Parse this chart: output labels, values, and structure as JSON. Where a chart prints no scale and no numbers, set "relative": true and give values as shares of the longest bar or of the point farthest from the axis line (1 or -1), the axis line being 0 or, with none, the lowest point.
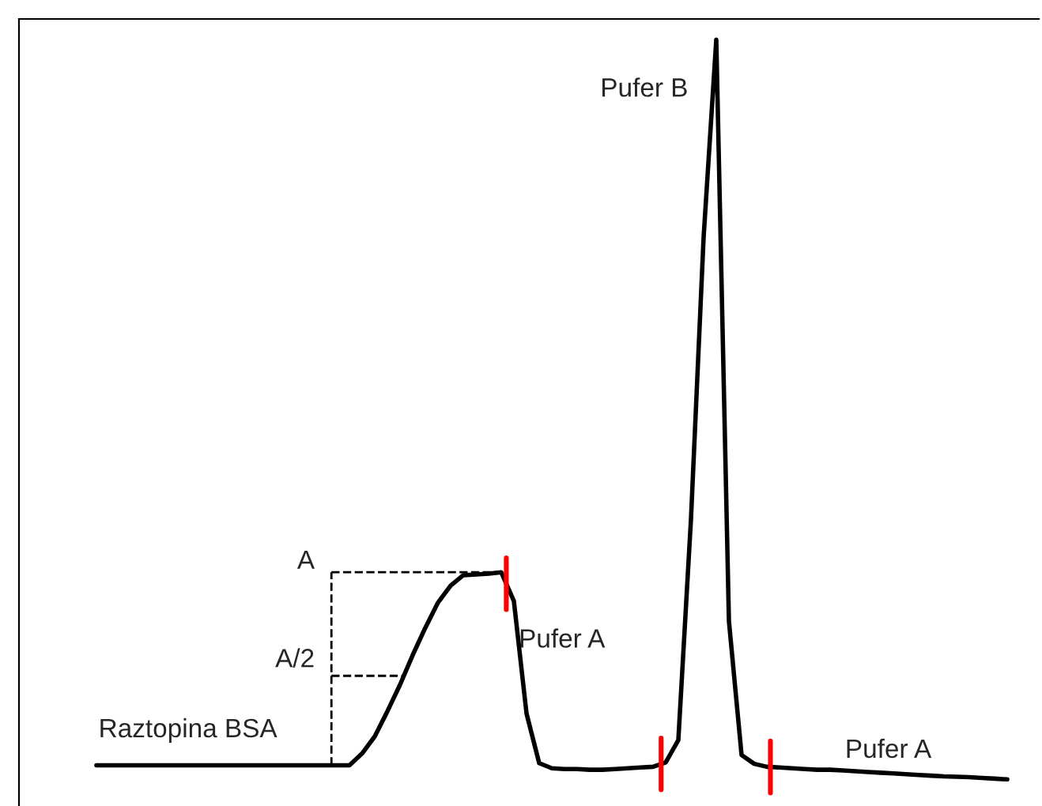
{
  "chart_data": {
    "type": "line",
    "relative": true,
    "categories": [
      null,
      null,
      null,
      null,
      null,
      null,
      null,
      null,
      null,
      null,
      null,
      null,
      null,
      null,
      null,
      null,
      null,
      null,
      null,
      null,
      null,
      null,
      null,
      null,
      null,
      null,
      null,
      null,
      null,
      null,
      null,
      null,
      null,
      null,
      null,
      null,
      null,
      null,
      null,
      null,
      null,
      null,
      null,
      null,
      null,
      null,
      null,
      null,
      null,
      null,
      null,
      null,
      null,
      null,
      null,
      null,
      null,
      null,
      null,
      null,
      null,
      null,
      null,
      null,
      null,
      null,
      null,
      null,
      null,
      null,
      null,
      null,
      null
    ],
    "series": [
      {
        "color": "#000000",
        "values": [
          0.019,
          0.019,
          0.019,
          0.019,
          0.019,
          0.019,
          0.019,
          0.019,
          0.019,
          0.019,
          0.019,
          0.019,
          0.019,
          0.019,
          0.019,
          0.019,
          0.019,
          0.019,
          0.019,
          0.019,
          0.019,
          0.035,
          0.058,
          0.092,
          0.128,
          0.168,
          0.205,
          0.239,
          0.262,
          0.276,
          0.277,
          0.278,
          0.28,
          0.241,
          0.089,
          0.022,
          0.015,
          0.014,
          0.014,
          0.013,
          0.013,
          0.014,
          0.015,
          0.016,
          0.017,
          0.023,
          0.053,
          0.352,
          0.733,
          1,
          0.214,
          0.033,
          0.021,
          0.017,
          0.016,
          0.015,
          0.014,
          0.013,
          0.013,
          0.012,
          0.011,
          0.01,
          0.009,
          0.008,
          0.007,
          0.006,
          0.005,
          0.004,
          0.0035,
          0.003,
          0.002,
          0.001,
          0
        ]
      }
    ],
    "annotations": [
      "Raztopina BSA",
      "A",
      "A/2",
      "Pufer A",
      "Pufer B",
      "Pufer A"
    ]
  }
}
